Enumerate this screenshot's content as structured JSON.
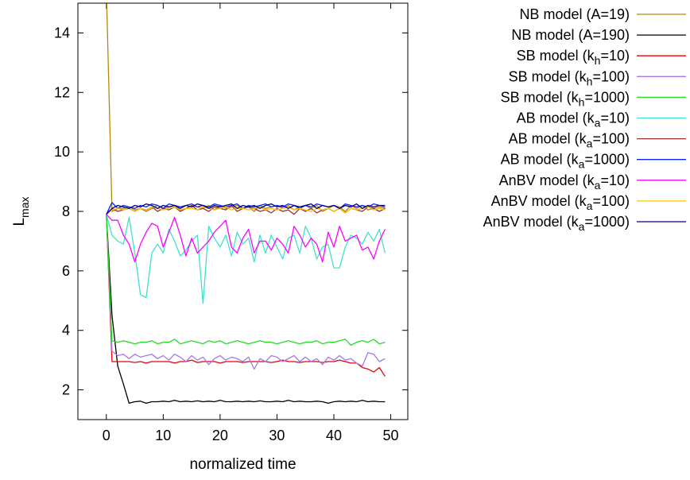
{
  "chart_data": {
    "type": "line",
    "xlabel": "normalized time",
    "ylabel": {
      "main": "L",
      "sub": "max"
    },
    "xlim": [
      -5,
      53
    ],
    "ylim": [
      1,
      15
    ],
    "xticks": [
      0,
      10,
      20,
      30,
      40,
      50
    ],
    "yticks": [
      2,
      4,
      6,
      8,
      10,
      12,
      14
    ],
    "legend_position": "outside-right",
    "x": [
      0,
      1,
      2,
      3,
      4,
      5,
      6,
      7,
      8,
      9,
      10,
      11,
      12,
      13,
      14,
      15,
      16,
      17,
      18,
      19,
      20,
      21,
      22,
      23,
      24,
      25,
      26,
      27,
      28,
      29,
      30,
      31,
      32,
      33,
      34,
      35,
      36,
      37,
      38,
      39,
      40,
      41,
      42,
      43,
      44,
      45,
      46,
      47,
      48,
      49
    ],
    "series": [
      {
        "name": "NB model (A=19)",
        "label": {
          "pre": "NB model (A=19)",
          "sub": "",
          "post": ""
        },
        "color": "#b8860b",
        "values": [
          15.5,
          8.0,
          8.1,
          8.1,
          8.15,
          8.05,
          8.1,
          8.0,
          8.1,
          8.2,
          8.1,
          8.15,
          8.2,
          8.05,
          8.1,
          8.2,
          8.15,
          8.1,
          8.2,
          8.05,
          8.2,
          8.1,
          8.15,
          8.2,
          8.1,
          8.15,
          8.0,
          8.2,
          8.1,
          8.15,
          8.2,
          8.1,
          8.2,
          8.05,
          8.15,
          8.2,
          8.1,
          8.2,
          8.0,
          8.1,
          8.2,
          8.15,
          8.0,
          8.2,
          8.1,
          8.2,
          8.05,
          8.1,
          8.15,
          8.1
        ]
      },
      {
        "name": "NB model (A=190)",
        "label": {
          "pre": "NB model (A=190)",
          "sub": "",
          "post": ""
        },
        "color": "#000000",
        "values": [
          7.9,
          4.5,
          2.8,
          2.2,
          1.55,
          1.6,
          1.62,
          1.55,
          1.6,
          1.6,
          1.62,
          1.6,
          1.65,
          1.6,
          1.62,
          1.6,
          1.63,
          1.6,
          1.62,
          1.6,
          1.65,
          1.6,
          1.6,
          1.62,
          1.6,
          1.62,
          1.6,
          1.63,
          1.6,
          1.6,
          1.62,
          1.6,
          1.65,
          1.6,
          1.62,
          1.6,
          1.6,
          1.62,
          1.6,
          1.55,
          1.6,
          1.62,
          1.6,
          1.62,
          1.6,
          1.65,
          1.6,
          1.62,
          1.6,
          1.6
        ]
      },
      {
        "name": "SB model (kh=10)",
        "label": {
          "pre": "SB model (k",
          "sub": "h",
          "post": "=10)"
        },
        "color": "#e8000b",
        "values": [
          7.9,
          2.95,
          2.95,
          2.95,
          2.95,
          2.92,
          2.95,
          2.9,
          2.95,
          2.95,
          2.95,
          2.95,
          2.9,
          2.95,
          2.95,
          3.0,
          2.92,
          2.95,
          2.95,
          2.95,
          2.9,
          2.95,
          2.95,
          2.95,
          2.92,
          2.95,
          2.95,
          2.95,
          2.95,
          2.92,
          2.95,
          3.0,
          2.95,
          2.95,
          2.92,
          2.95,
          2.95,
          2.95,
          2.92,
          2.95,
          2.95,
          3.0,
          2.95,
          2.9,
          2.9,
          2.75,
          2.7,
          2.6,
          2.75,
          2.45
        ]
      },
      {
        "name": "SB model (kh=100)",
        "label": {
          "pre": "SB model (k",
          "sub": "h",
          "post": "=100)"
        },
        "color": "#a678e8",
        "values": [
          7.9,
          3.3,
          3.15,
          3.2,
          3.05,
          3.2,
          3.1,
          3.15,
          3.2,
          3.05,
          3.15,
          3.0,
          3.2,
          3.1,
          2.95,
          3.15,
          3.0,
          3.1,
          2.85,
          3.05,
          3.15,
          3.0,
          3.1,
          3.05,
          2.95,
          3.1,
          2.7,
          3.05,
          2.95,
          3.15,
          3.1,
          2.95,
          3.05,
          3.15,
          2.95,
          3.1,
          2.95,
          3.05,
          2.85,
          3.1,
          3.0,
          3.15,
          3.0,
          3.05,
          2.9,
          2.8,
          3.25,
          3.2,
          2.95,
          3.05
        ]
      },
      {
        "name": "SB model (kh=1000)",
        "label": {
          "pre": "SB model (k",
          "sub": "h",
          "post": "=1000)"
        },
        "color": "#22dd22",
        "values": [
          7.9,
          3.65,
          3.6,
          3.65,
          3.6,
          3.55,
          3.6,
          3.6,
          3.65,
          3.55,
          3.6,
          3.6,
          3.7,
          3.55,
          3.6,
          3.65,
          3.6,
          3.55,
          3.65,
          3.6,
          3.65,
          3.55,
          3.6,
          3.65,
          3.6,
          3.55,
          3.6,
          3.65,
          3.6,
          3.6,
          3.55,
          3.6,
          3.65,
          3.6,
          3.55,
          3.6,
          3.6,
          3.65,
          3.55,
          3.6,
          3.6,
          3.65,
          3.7,
          3.5,
          3.6,
          3.65,
          3.6,
          3.7,
          3.55,
          3.6
        ]
      },
      {
        "name": "AB model (ka=10)",
        "label": {
          "pre": "AB model (k",
          "sub": "a",
          "post": "=10)"
        },
        "color": "#40e0d0",
        "values": [
          7.9,
          7.2,
          7.0,
          6.9,
          7.8,
          6.6,
          5.2,
          5.1,
          6.6,
          6.9,
          6.6,
          7.4,
          7.0,
          6.5,
          6.7,
          7.0,
          7.2,
          4.9,
          7.5,
          7.1,
          6.8,
          7.2,
          6.5,
          7.3,
          6.9,
          7.1,
          6.3,
          7.2,
          6.6,
          7.2,
          6.8,
          6.4,
          7.1,
          7.2,
          6.6,
          7.5,
          7.1,
          6.4,
          6.8,
          6.9,
          6.1,
          6.1,
          6.8,
          7.2,
          7.1,
          6.9,
          7.3,
          7.0,
          7.4,
          6.6
        ]
      },
      {
        "name": "AB model (ka=100)",
        "label": {
          "pre": "AB model (k",
          "sub": "a",
          "post": "=100)"
        },
        "color": "#a0302d",
        "values": [
          7.9,
          8.1,
          8.0,
          8.05,
          8.1,
          8.0,
          8.1,
          8.05,
          8.15,
          8.0,
          8.1,
          8.05,
          8.15,
          8.0,
          8.1,
          8.2,
          8.05,
          8.1,
          8.0,
          8.15,
          8.1,
          8.05,
          8.2,
          8.0,
          8.1,
          8.15,
          8.1,
          8.0,
          8.05,
          7.95,
          8.1,
          8.0,
          8.05,
          7.9,
          8.1,
          8.0,
          8.1,
          7.95,
          8.05,
          8.1,
          8.0,
          8.1,
          7.95,
          8.1,
          8.05,
          8.0,
          8.15,
          8.1,
          8.0,
          8.1
        ]
      },
      {
        "name": "AB model (ka=1000)",
        "label": {
          "pre": "AB model (k",
          "sub": "a",
          "post": "=1000)"
        },
        "color": "#0b24fb",
        "values": [
          7.9,
          8.3,
          8.1,
          8.2,
          8.15,
          8.1,
          8.2,
          8.15,
          8.25,
          8.2,
          8.1,
          8.25,
          8.2,
          8.15,
          8.2,
          8.25,
          8.15,
          8.2,
          8.15,
          8.25,
          8.2,
          8.15,
          8.2,
          8.25,
          8.1,
          8.2,
          8.15,
          8.2,
          8.25,
          8.15,
          8.2,
          8.15,
          8.25,
          8.2,
          8.1,
          8.2,
          8.15,
          8.25,
          8.2,
          8.15,
          8.2,
          8.1,
          8.25,
          8.2,
          8.15,
          8.2,
          8.15,
          8.25,
          8.2,
          8.15
        ]
      },
      {
        "name": "AnBV model (ka=10)",
        "label": {
          "pre": "AnBV model (k",
          "sub": "a",
          "post": "=10)"
        },
        "color": "#ff00ff",
        "values": [
          7.9,
          7.7,
          7.7,
          7.2,
          6.9,
          6.3,
          6.9,
          7.3,
          7.6,
          7.5,
          6.8,
          7.3,
          7.8,
          7.2,
          6.5,
          7.1,
          6.6,
          6.8,
          7.0,
          7.3,
          7.5,
          7.7,
          6.8,
          6.6,
          7.1,
          7.4,
          6.6,
          7.0,
          7.0,
          6.7,
          7.1,
          6.9,
          6.6,
          7.5,
          7.2,
          6.8,
          7.1,
          6.9,
          6.3,
          7.3,
          6.8,
          7.5,
          7.0,
          7.1,
          7.2,
          6.7,
          6.8,
          6.4,
          7.0,
          7.4
        ]
      },
      {
        "name": "AnBV model (ka=100)",
        "label": {
          "pre": "AnBV model (k",
          "sub": "a",
          "post": "=100)"
        },
        "color": "#ffc000",
        "values": [
          7.9,
          8.05,
          8.1,
          8.05,
          8.1,
          8.0,
          8.1,
          8.05,
          8.15,
          8.1,
          8.05,
          8.1,
          8.15,
          8.05,
          8.1,
          8.1,
          8.05,
          8.15,
          8.1,
          8.05,
          8.1,
          8.15,
          8.05,
          8.1,
          8.1,
          8.05,
          8.1,
          8.15,
          8.05,
          8.1,
          8.05,
          8.1,
          8.15,
          8.05,
          8.1,
          8.05,
          8.0,
          8.1,
          8.05,
          8.1,
          8.0,
          8.1,
          7.95,
          8.1,
          8.05,
          8.1,
          8.15,
          8.05,
          8.1,
          8.05
        ]
      },
      {
        "name": "AnBV model (ka=1000)",
        "label": {
          "pre": "AnBV model (k",
          "sub": "a",
          "post": "=1000)"
        },
        "color": "#00007f",
        "values": [
          7.9,
          8.1,
          8.2,
          8.15,
          8.1,
          8.2,
          8.15,
          8.25,
          8.2,
          8.1,
          8.2,
          8.15,
          8.2,
          8.1,
          8.2,
          8.15,
          8.25,
          8.2,
          8.1,
          8.2,
          8.15,
          8.2,
          8.25,
          8.1,
          8.2,
          8.15,
          8.2,
          8.1,
          8.2,
          8.25,
          8.15,
          8.2,
          8.1,
          8.2,
          8.15,
          8.2,
          8.25,
          8.1,
          8.2,
          8.15,
          8.2,
          8.1,
          8.2,
          8.15,
          8.25,
          8.1,
          8.2,
          8.15,
          8.2,
          8.2
        ]
      }
    ]
  }
}
